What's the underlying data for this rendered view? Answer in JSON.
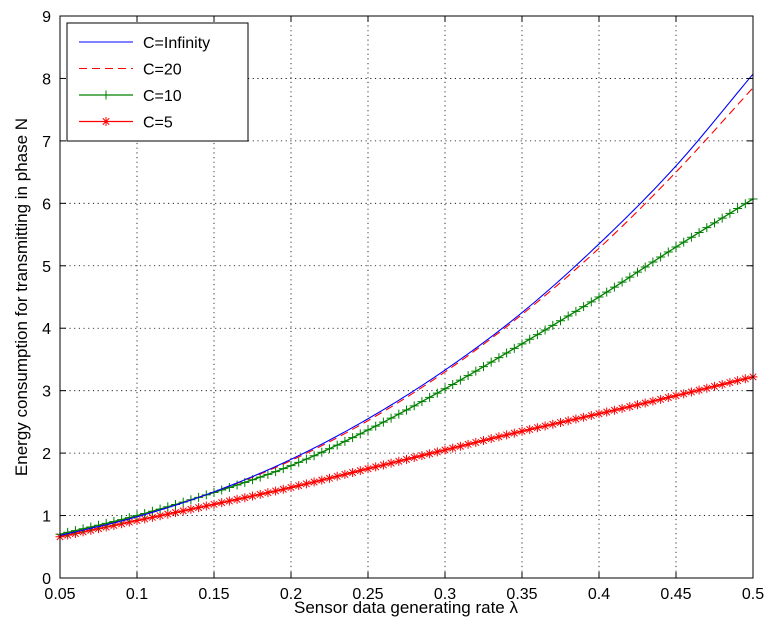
{
  "chart_data": {
    "type": "line",
    "title": "",
    "xlabel": "Sensor data generating rate λ",
    "ylabel": "Energy consumption for transmitting in phase N",
    "xlim": [
      0.05,
      0.5
    ],
    "ylim": [
      0,
      9
    ],
    "xticks": [
      "0.05",
      "0.1",
      "0.15",
      "0.2",
      "0.25",
      "0.3",
      "0.35",
      "0.4",
      "0.45",
      "0.5"
    ],
    "yticks": [
      "0",
      "1",
      "2",
      "3",
      "4",
      "5",
      "6",
      "7",
      "8",
      "9"
    ],
    "grid": true,
    "legend_position": "top-left",
    "x": [
      0.05,
      0.1,
      0.15,
      0.2,
      0.25,
      0.3,
      0.35,
      0.4,
      0.45,
      0.5
    ],
    "series": [
      {
        "name": "C=Infinity",
        "color": "#0000ff",
        "style": "solid",
        "marker": "none",
        "values": [
          0.68,
          0.98,
          1.38,
          1.9,
          2.55,
          3.33,
          4.25,
          5.35,
          6.6,
          8.07
        ]
      },
      {
        "name": "C=20",
        "color": "#ff0000",
        "style": "dashed",
        "marker": "none",
        "values": [
          0.68,
          0.98,
          1.38,
          1.88,
          2.52,
          3.3,
          4.22,
          5.28,
          6.5,
          7.85
        ]
      },
      {
        "name": "C=10",
        "color": "#008000",
        "style": "solid",
        "marker": "plus",
        "values": [
          0.7,
          1.0,
          1.37,
          1.8,
          2.37,
          3.03,
          3.75,
          4.5,
          5.3,
          6.07
        ]
      },
      {
        "name": "C=5",
        "color": "#ff0000",
        "style": "solid",
        "marker": "asterisk",
        "values": [
          0.66,
          0.92,
          1.18,
          1.45,
          1.75,
          2.05,
          2.35,
          2.63,
          2.92,
          3.22
        ]
      }
    ]
  }
}
